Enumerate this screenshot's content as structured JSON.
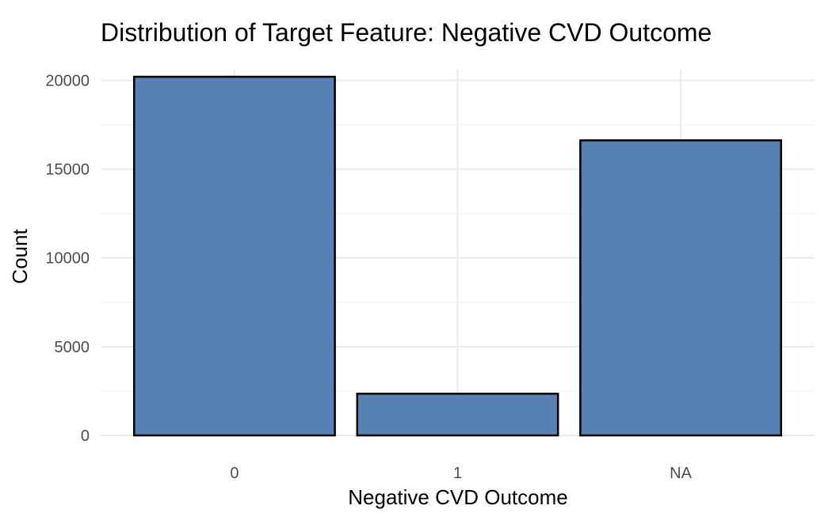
{
  "chart_data": {
    "type": "bar",
    "title": "Distribution of Target Feature: Negative CVD Outcome",
    "xlabel": "Negative CVD Outcome",
    "ylabel": "Count",
    "categories": [
      "0",
      "1",
      "NA"
    ],
    "values": [
      20200,
      2350,
      16620
    ],
    "ylim": [
      0,
      20600
    ],
    "yticks": [
      0,
      5000,
      10000,
      15000,
      20000
    ],
    "y_minor_ticks": [
      2500,
      7500,
      12500,
      17500
    ],
    "grid": true,
    "bar_color": "#5681B2",
    "bar_outline": "#000000"
  }
}
